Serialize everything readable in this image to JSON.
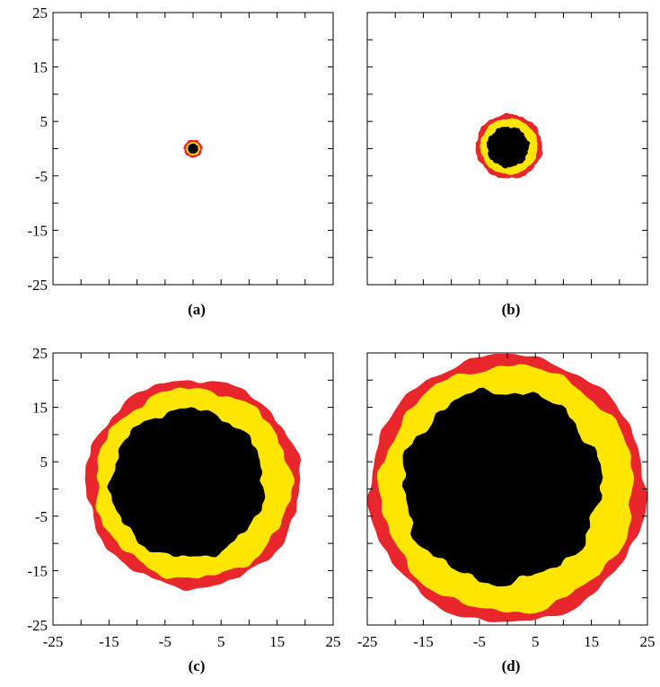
{
  "chart_data": [
    {
      "type": "scatter",
      "panel_label": "(a)",
      "xlim": [
        -25,
        25
      ],
      "ylim": [
        -25,
        25
      ],
      "xticks": [],
      "yticks": [
        "-25",
        "-15",
        "-5",
        "5",
        "15",
        "25"
      ],
      "grid": false,
      "regions": [
        {
          "color": "#e8262b",
          "center": [
            0,
            0
          ],
          "radius": 1.5,
          "roughness": 0.08
        },
        {
          "color": "#ffe600",
          "center": [
            0,
            0
          ],
          "radius": 1.1,
          "roughness": 0.05
        },
        {
          "color": "#000000",
          "center": [
            0,
            0
          ],
          "radius": 0.8,
          "roughness": 0.05
        }
      ]
    },
    {
      "type": "scatter",
      "panel_label": "(b)",
      "xlim": [
        -25,
        25
      ],
      "ylim": [
        -25,
        25
      ],
      "xticks": [],
      "yticks": [],
      "grid": false,
      "regions": [
        {
          "color": "#e8262b",
          "center": [
            0.3,
            0.4
          ],
          "radius": 5.8,
          "roughness": 0.04
        },
        {
          "color": "#ffe600",
          "center": [
            0.3,
            0.4
          ],
          "radius": 5.0,
          "roughness": 0.03
        },
        {
          "color": "#000000",
          "center": [
            0.1,
            0.3
          ],
          "radius": 3.6,
          "roughness": 0.07
        }
      ]
    },
    {
      "type": "scatter",
      "panel_label": "(c)",
      "xlim": [
        -25,
        25
      ],
      "ylim": [
        -25,
        25
      ],
      "xticks": [
        "-25",
        "-15",
        "-5",
        "5",
        "15",
        "25"
      ],
      "yticks": [
        "-25",
        "-15",
        "-5",
        "5",
        "15",
        "25"
      ],
      "grid": false,
      "regions": [
        {
          "color": "#e8262b",
          "center": [
            0,
            1
          ],
          "radius": 19,
          "roughness": 0.03
        },
        {
          "color": "#ffe600",
          "center": [
            0,
            1
          ],
          "radius": 17.3,
          "roughness": 0.04
        },
        {
          "color": "#000000",
          "center": [
            -1,
            1
          ],
          "radius": 13.5,
          "roughness": 0.05
        }
      ]
    },
    {
      "type": "scatter",
      "panel_label": "(d)",
      "xlim": [
        -25,
        25
      ],
      "ylim": [
        -25,
        25
      ],
      "xticks": [
        "-25",
        "-15",
        "-5",
        "5",
        "15",
        "25"
      ],
      "yticks": [],
      "grid": false,
      "regions": [
        {
          "color": "#e8262b",
          "center": [
            0,
            0
          ],
          "radius": 24.5,
          "roughness": 0.025
        },
        {
          "color": "#ffe600",
          "center": [
            0,
            0
          ],
          "radius": 22.5,
          "roughness": 0.035
        },
        {
          "color": "#000000",
          "center": [
            -1,
            0.5
          ],
          "radius": 17.5,
          "roughness": 0.06
        }
      ]
    }
  ]
}
